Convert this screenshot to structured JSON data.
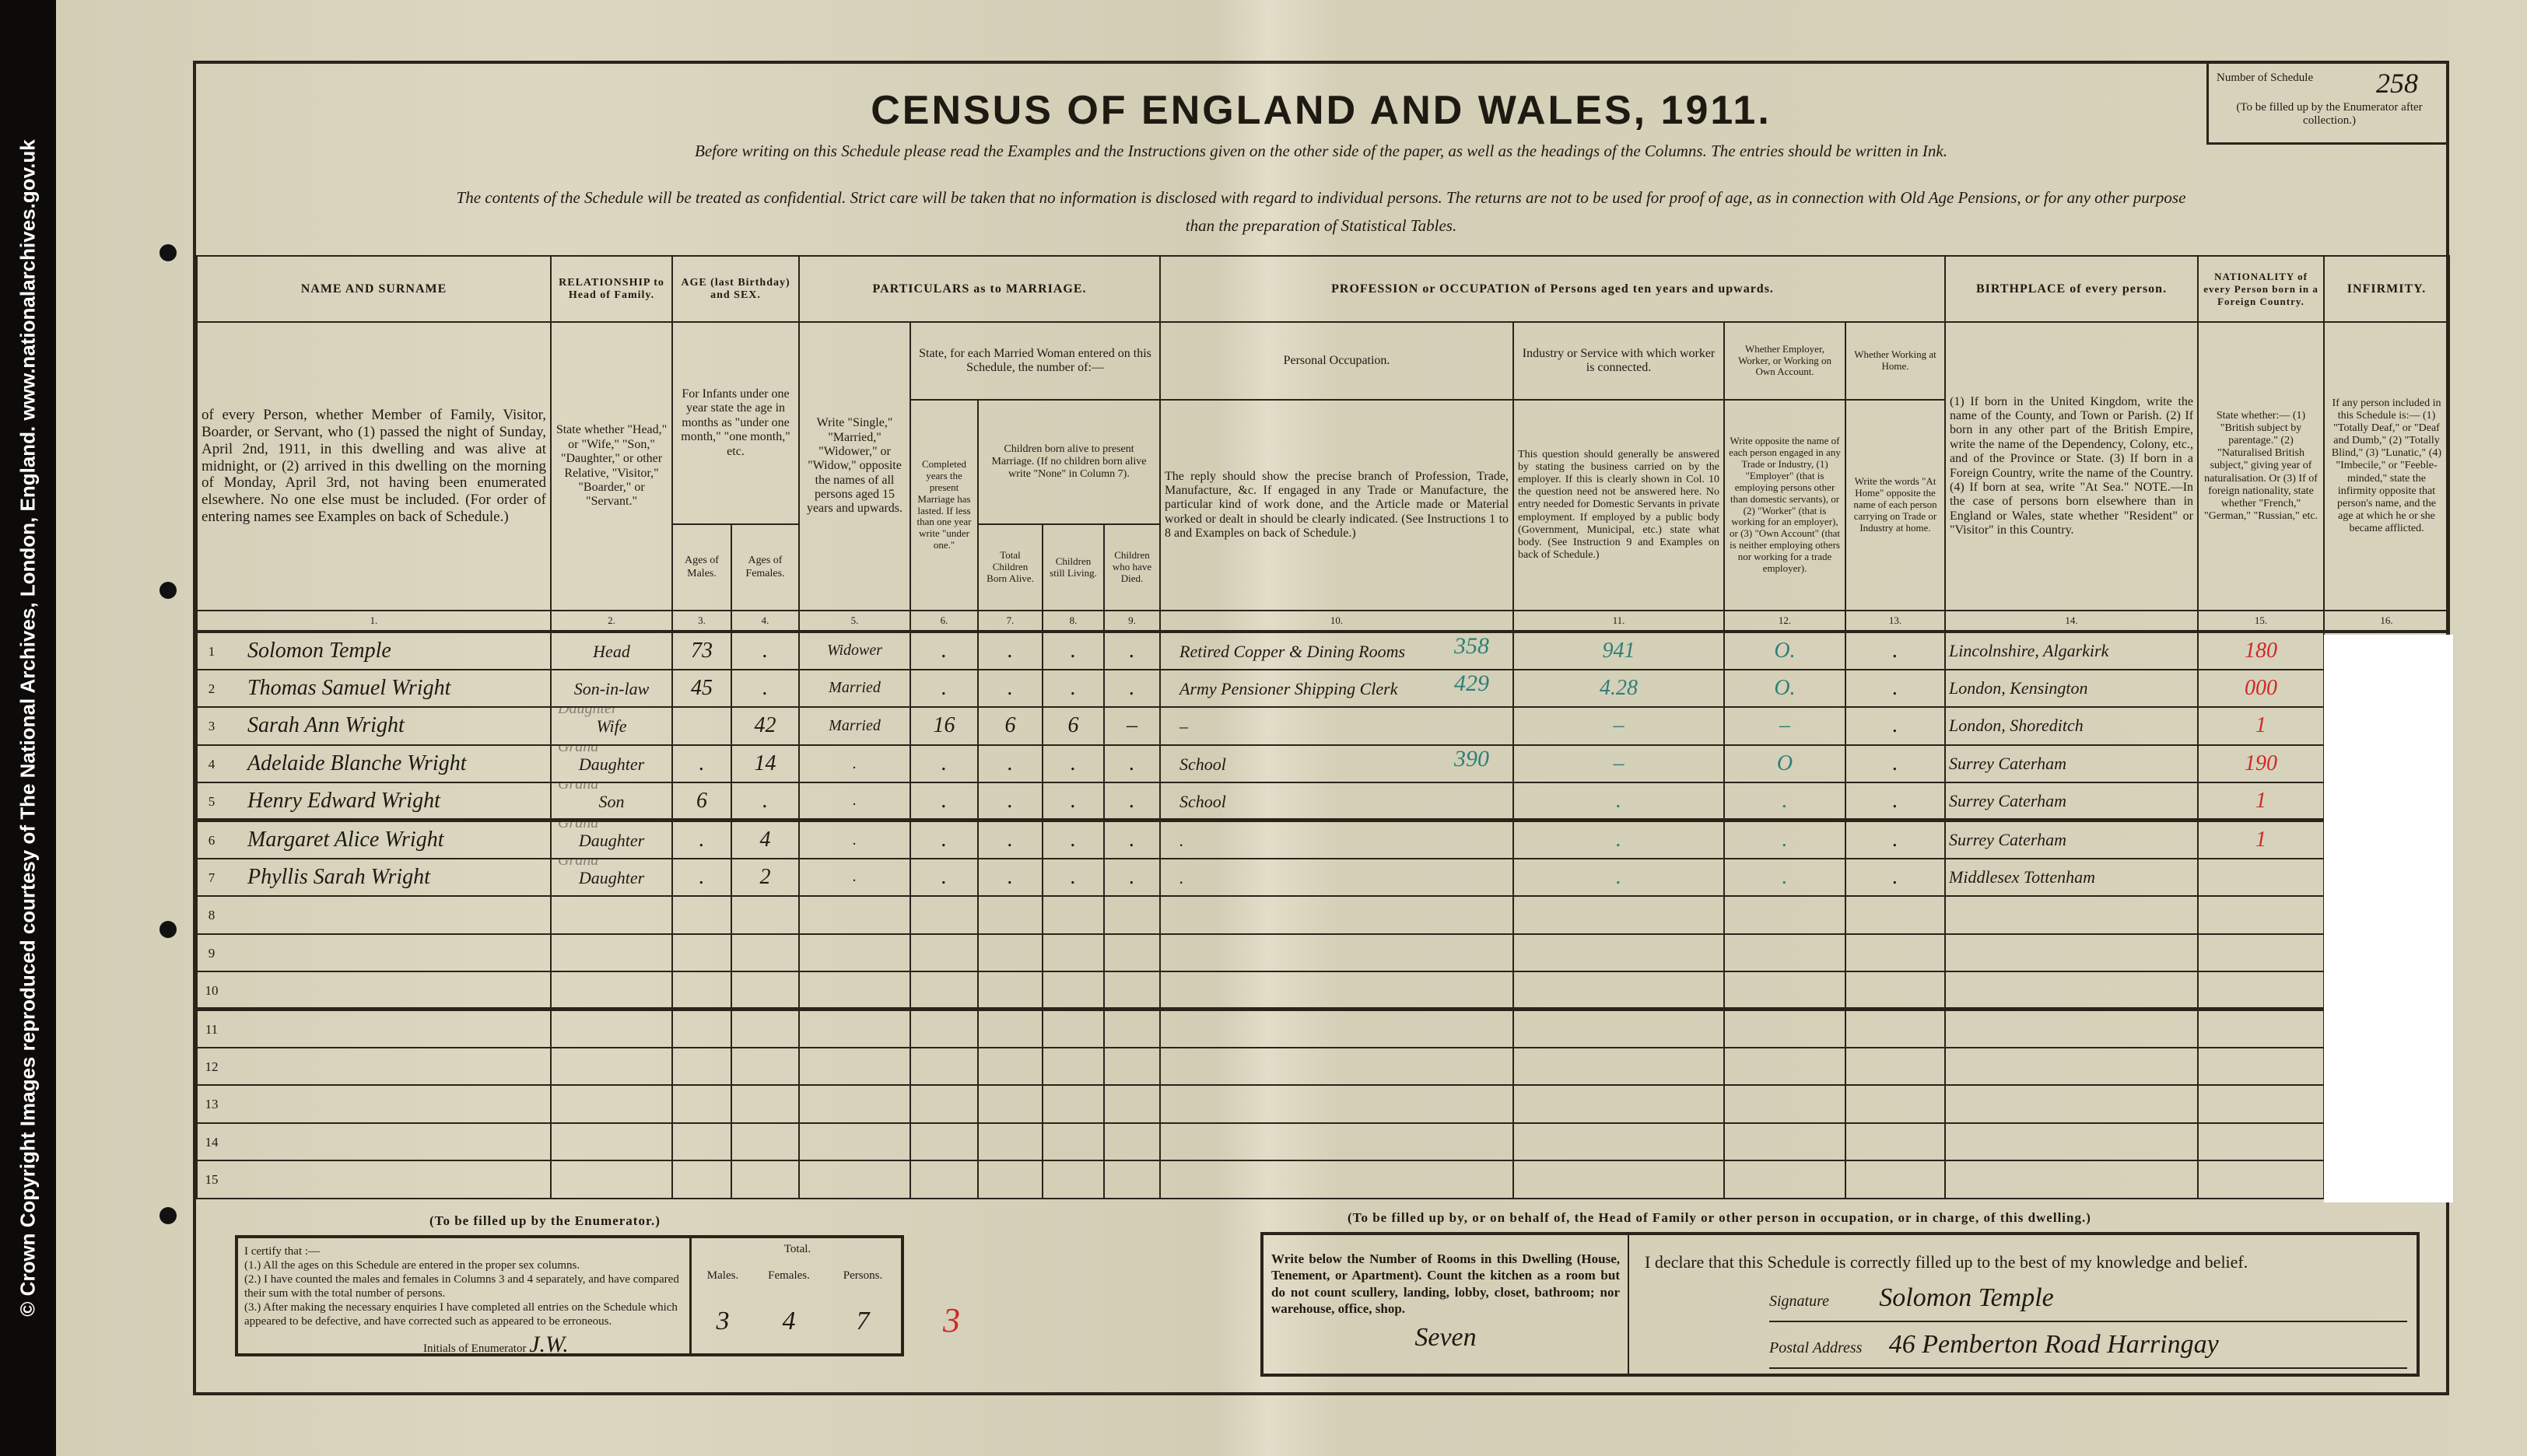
{
  "copyright": "© Crown Copyright Images reproduced courtesy of The National Archives, London, England. www.nationalarchives.gov.uk",
  "title": "CENSUS OF ENGLAND AND WALES, 1911.",
  "instruction_1": "Before writing on this Schedule please read the Examples and the Instructions given on the other side of the paper, as well as the headings of the Columns. The entries should be written in Ink.",
  "instruction_2": "The contents of the Schedule will be treated as confidential. Strict care will be taken that no information is disclosed with regard to individual persons. The returns are not to be used for proof of age, as in connection with Old Age Pensions, or for any other purpose",
  "instruction_3": "than the preparation of Statistical Tables.",
  "schedule": {
    "label": "Number of Schedule",
    "number": "258",
    "note": "(To be filled up by the Enumerator after collection.)"
  },
  "headers": {
    "name": "NAME AND SURNAME",
    "relationship": "RELATIONSHIP to Head of Family.",
    "age": "AGE (last Birthday) and SEX.",
    "marriage": "PARTICULARS as to MARRIAGE.",
    "profession": "PROFESSION or OCCUPATION of Persons aged ten years and upwards.",
    "birthplace": "BIRTHPLACE of every person.",
    "nationality": "NATIONALITY of every Person born in a Foreign Country.",
    "infirmity": "INFIRMITY.",
    "name_desc": "of every Person, whether Member of Family, Visitor, Boarder, or Servant, who (1) passed the night of Sunday, April 2nd, 1911, in this dwelling and was alive at midnight, or (2) arrived in this dwelling on the morning of Monday, April 3rd, not having been enumerated elsewhere. No one else must be included. (For order of entering names see Examples on back of Schedule.)",
    "relationship_desc": "State whether \"Head,\" or \"Wife,\" \"Son,\" \"Daughter,\" or other Relative, \"Visitor,\" \"Boarder,\" or \"Servant.\"",
    "infants_desc": "For Infants under one year state the age in months as \"under one month,\" \"one month,\" etc.",
    "ages_males": "Ages of Males.",
    "ages_females": "Ages of Females.",
    "marital_desc": "Write \"Single,\" \"Married,\" \"Widower,\" or \"Widow,\" opposite the names of all persons aged 15 years and upwards.",
    "married_woman": "State, for each Married Woman entered on this Schedule, the number of:—",
    "completed_years": "Completed years the present Marriage has lasted. If less than one year write \"under one.\"",
    "children_born": "Children born alive to present Marriage. (If no children born alive write \"None\" in Column 7).",
    "total_born": "Total Children Born Alive.",
    "still_living": "Children still Living.",
    "have_died": "Children who have Died.",
    "personal_occupation": "Personal Occupation.",
    "occupation_desc": "The reply should show the precise branch of Profession, Trade, Manufacture, &c. If engaged in any Trade or Manufacture, the particular kind of work done, and the Article made or Material worked or dealt in should be clearly indicated. (See Instructions 1 to 8 and Examples on back of Schedule.)",
    "industry": "Industry or Service with which worker is connected.",
    "industry_desc": "This question should generally be answered by stating the business carried on by the employer. If this is clearly shown in Col. 10 the question need not be answered here. No entry needed for Domestic Servants in private employment. If employed by a public body (Government, Municipal, etc.) state what body. (See Instruction 9 and Examples on back of Schedule.)",
    "employer": "Whether Employer, Worker, or Working on Own Account.",
    "employer_desc": "Write opposite the name of each person engaged in any Trade or Industry, (1) \"Employer\" (that is employing persons other than domestic servants), or (2) \"Worker\" (that is working for an employer), or (3) \"Own Account\" (that is neither employing others nor working for a trade employer).",
    "at_home": "Whether Working at Home.",
    "at_home_desc": "Write the words \"At Home\" opposite the name of each person carrying on Trade or Industry at home.",
    "birthplace_desc": "(1) If born in the United Kingdom, write the name of the County, and Town or Parish. (2) If born in any other part of the British Empire, write the name of the Dependency, Colony, etc., and of the Province or State. (3) If born in a Foreign Country, write the name of the Country. (4) If born at sea, write \"At Sea.\" NOTE.—In the case of persons born elsewhere than in England or Wales, state whether \"Resident\" or \"Visitor\" in this Country.",
    "nationality_desc": "State whether:— (1) \"British subject by parentage.\" (2) \"Naturalised British subject,\" giving year of naturalisation. Or (3) If of foreign nationality, state whether \"French,\" \"German,\" \"Russian,\" etc.",
    "infirmity_desc": "If any person included in this Schedule is:— (1) \"Totally Deaf,\" or \"Deaf and Dumb,\" (2) \"Totally Blind,\" (3) \"Lunatic,\" (4) \"Imbecile,\" or \"Feeble-minded,\" state the infirmity opposite that person's name, and the age at which he or she became afflicted.",
    "column_numbers": [
      "1.",
      "2.",
      "3.",
      "4.",
      "5.",
      "6.",
      "7.",
      "8.",
      "9.",
      "10.",
      "11.",
      "12.",
      "13.",
      "14.",
      "15.",
      "16."
    ]
  },
  "rows": [
    {
      "n": "1",
      "name": "Solomon Temple",
      "rel": "Head",
      "ann": "",
      "m": "73",
      "f": ".",
      "mar": "Widower",
      "yrs": ".",
      "born": ".",
      "liv": ".",
      "died": ".",
      "occ": "Retired Copper & Dining Rooms",
      "occ_code": "358",
      "ind": "941",
      "emp": "O.",
      "home": ".",
      "bp": "Lincolnshire, Algarkirk",
      "nat": "180"
    },
    {
      "n": "2",
      "name": "Thomas Samuel Wright",
      "rel": "Son-in-law",
      "ann": "",
      "m": "45",
      "f": ".",
      "mar": "Married",
      "yrs": ".",
      "born": ".",
      "liv": ".",
      "died": ".",
      "occ": "Army Pensioner Shipping Clerk",
      "occ_code": "429",
      "ind": "4.28",
      "emp": "O.",
      "home": ".",
      "bp": "London, Kensington",
      "nat": "000"
    },
    {
      "n": "3",
      "name": "Sarah Ann Wright",
      "rel": "Wife",
      "ann": "Daughter",
      "m": "",
      "f": "42",
      "mar": "Married",
      "yrs": "16",
      "born": "6",
      "liv": "6",
      "died": "–",
      "occ": "–",
      "occ_code": "",
      "ind": "–",
      "emp": "–",
      "home": ".",
      "bp": "London, Shoreditch",
      "nat": "1"
    },
    {
      "n": "4",
      "name": "Adelaide Blanche Wright",
      "rel": "Daughter",
      "ann": "Grand",
      "m": ".",
      "f": "14",
      "mar": ".",
      "yrs": ".",
      "born": ".",
      "liv": ".",
      "died": ".",
      "occ": "School",
      "occ_code": "390",
      "ind": "–",
      "emp": "O",
      "home": ".",
      "bp": "Surrey Caterham",
      "nat": "190"
    },
    {
      "n": "5",
      "name": "Henry Edward Wright",
      "rel": "Son",
      "ann": "Grand",
      "m": "6",
      "f": ".",
      "mar": ".",
      "yrs": ".",
      "born": ".",
      "liv": ".",
      "died": ".",
      "occ": "School",
      "occ_code": "",
      "ind": ".",
      "emp": ".",
      "home": ".",
      "bp": "Surrey Caterham",
      "nat": "1"
    },
    {
      "n": "6",
      "name": "Margaret Alice Wright",
      "rel": "Daughter",
      "ann": "Grand",
      "m": ".",
      "f": "4",
      "mar": ".",
      "yrs": ".",
      "born": ".",
      "liv": ".",
      "died": ".",
      "occ": ".",
      "occ_code": "",
      "ind": ".",
      "emp": ".",
      "home": ".",
      "bp": "Surrey Caterham",
      "nat": "1"
    },
    {
      "n": "7",
      "name": "Phyllis Sarah Wright",
      "rel": "Daughter",
      "ann": "Grand",
      "m": ".",
      "f": "2",
      "mar": ".",
      "yrs": ".",
      "born": ".",
      "liv": ".",
      "died": ".",
      "occ": ".",
      "occ_code": "",
      "ind": ".",
      "emp": ".",
      "home": ".",
      "bp": "Middlesex Tottenham",
      "nat": ""
    },
    {
      "n": "8"
    },
    {
      "n": "9"
    },
    {
      "n": "10"
    },
    {
      "n": "11"
    },
    {
      "n": "12"
    },
    {
      "n": "13"
    },
    {
      "n": "14"
    },
    {
      "n": "15"
    }
  ],
  "enumerator": {
    "heading": "(To be filled up by the Enumerator.)",
    "cert_intro": "I certify that :—",
    "cert_1": "(1.) All the ages on this Schedule are entered in the proper sex columns.",
    "cert_2": "(2.) I have counted the males and females in Columns 3 and 4 separately, and have compared their sum with the total number of persons.",
    "cert_3": "(3.) After making the necessary enquiries I have completed all entries on the Schedule which appeared to be defective, and have corrected such as appeared to be erroneous.",
    "initials_label": "Initials of Enumerator",
    "initials": "J.W.",
    "total_label": "Total.",
    "males_label": "Males.",
    "females_label": "Females.",
    "persons_label": "Persons.",
    "males": "3",
    "females": "4",
    "persons": "7",
    "red_mark": "3"
  },
  "household": {
    "heading": "(To be filled up by, or on behalf of, the Head of Family or other person in occupation, or in charge, of this dwelling.)",
    "rooms_instruction": "Write below the Number of Rooms in this Dwelling (House, Tenement, or Apartment). Count the kitchen as a room but do not count scullery, landing, lobby, closet, bathroom; nor warehouse, office, shop.",
    "rooms": "Seven",
    "declaration": "I declare that this Schedule is correctly filled up to the best of my knowledge and belief.",
    "signature_label": "Signature",
    "signature": "Solomon Temple",
    "address_label": "Postal Address",
    "address": "46 Pemberton Road Harringay"
  }
}
